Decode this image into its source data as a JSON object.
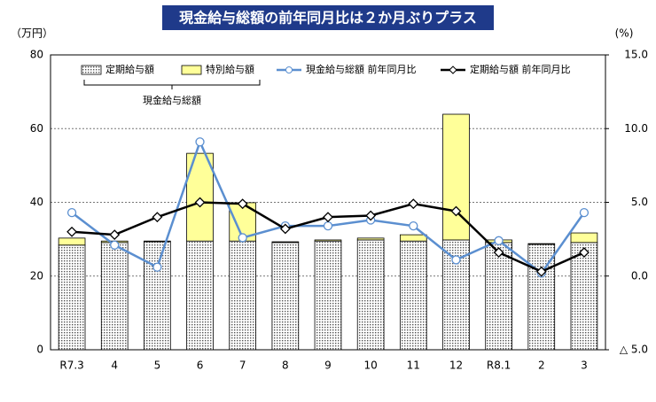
{
  "chart_data": {
    "type": "combo",
    "title": "現金給与総額の前年同月比は２か月ぶりプラス",
    "y_unit": "（万円）",
    "y2_unit": "(%)",
    "annotation": "現金給与総額",
    "categories": [
      "R7.3",
      "4",
      "5",
      "6",
      "7",
      "8",
      "9",
      "10",
      "11",
      "12",
      "R8.1",
      "2",
      "3"
    ],
    "ylim": [
      0,
      80
    ],
    "yticks": [
      0,
      20,
      40,
      60,
      80
    ],
    "y2lim": [
      -5,
      15
    ],
    "y2ticks": [
      {
        "value": -5,
        "label": "△ 5.0"
      },
      {
        "value": 0,
        "label": "0.0"
      },
      {
        "value": 5,
        "label": "5.0"
      },
      {
        "value": 10,
        "label": "10.0"
      },
      {
        "value": 15,
        "label": "15.0"
      }
    ],
    "grid": true,
    "stacked": true,
    "series": [
      {
        "name": "定期給与額",
        "type": "bar",
        "color": "#d9d9d9",
        "values": [
          28.4,
          29.1,
          29.3,
          29.5,
          29.5,
          29.1,
          29.5,
          29.8,
          29.5,
          29.8,
          29.1,
          28.6,
          29.1
        ]
      },
      {
        "name": "特別給与額",
        "type": "bar",
        "color": "#ffff99",
        "values": [
          1.9,
          0.4,
          0.2,
          23.8,
          10.4,
          0.2,
          0.3,
          0.5,
          1.7,
          34.1,
          0.7,
          0.2,
          2.6
        ]
      },
      {
        "name": "現金給与総額 前年同月比",
        "type": "line",
        "axis": "y2",
        "color": "#5b8fd0",
        "marker": "circle",
        "values": [
          4.3,
          2.1,
          0.6,
          9.1,
          2.6,
          3.4,
          3.4,
          3.8,
          3.4,
          1.1,
          2.4,
          0.2,
          4.3
        ]
      },
      {
        "name": "定期給与額 前年同月比",
        "type": "line",
        "axis": "y2",
        "color": "#000000",
        "marker": "diamond",
        "values": [
          3.0,
          2.8,
          4.0,
          5.0,
          4.9,
          3.2,
          4.0,
          4.1,
          4.9,
          4.4,
          1.6,
          0.3,
          1.6
        ]
      }
    ]
  }
}
